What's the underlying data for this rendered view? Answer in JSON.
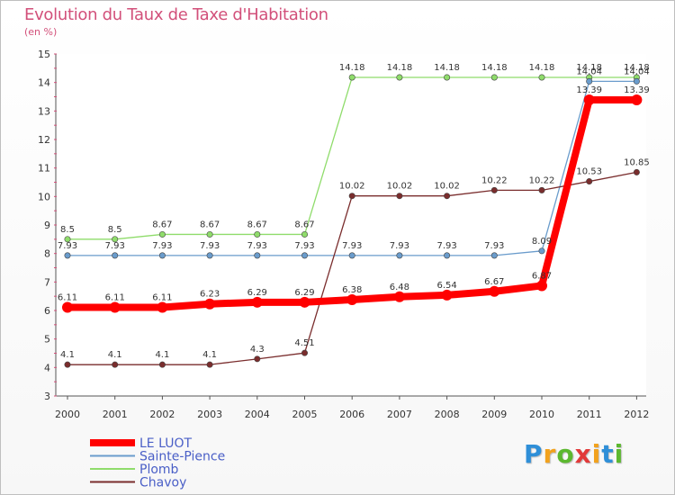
{
  "chart_data": {
    "type": "line",
    "title": "Evolution du Taux de Taxe d'Habitation",
    "ylabel": "(en %)",
    "xlabel": "",
    "ylim": [
      3,
      15
    ],
    "yticks": [
      "3",
      "4",
      "5",
      "6",
      "7",
      "8",
      "9",
      "10",
      "11",
      "12",
      "13",
      "14",
      "15"
    ],
    "categories": [
      "2000",
      "2001",
      "2002",
      "2003",
      "2004",
      "2005",
      "2006",
      "2007",
      "2008",
      "2009",
      "2010",
      "2011",
      "2012"
    ],
    "grid": false,
    "legend": "bottom-left",
    "series": [
      {
        "name": "LE LUOT",
        "color": "#ff0000",
        "values": [
          6.11,
          6.11,
          6.11,
          6.23,
          6.29,
          6.29,
          6.38,
          6.48,
          6.54,
          6.67,
          6.87,
          13.39,
          13.39
        ],
        "labels": [
          "6.11",
          "6.11",
          "6.11",
          "6.23",
          "6.29",
          "6.29",
          "6.38",
          "6.48",
          "6.54",
          "6.67",
          "6.87",
          "13.39",
          "13.39"
        ]
      },
      {
        "name": "Sainte-Pience",
        "color": "#6a9ccc",
        "values": [
          7.93,
          7.93,
          7.93,
          7.93,
          7.93,
          7.93,
          7.93,
          7.93,
          7.93,
          7.93,
          8.09,
          14.04,
          14.04
        ],
        "labels": [
          "7.93",
          "7.93",
          "7.93",
          "7.93",
          "7.93",
          "7.93",
          "7.93",
          "7.93",
          "7.93",
          "7.93",
          "8.09",
          "14.04",
          "14.04"
        ]
      },
      {
        "name": "Plomb",
        "color": "#8fdc6b",
        "values": [
          8.5,
          8.5,
          8.67,
          8.67,
          8.67,
          8.67,
          14.18,
          14.18,
          14.18,
          14.18,
          14.18,
          14.18,
          14.18
        ],
        "labels": [
          "8.5",
          "8.5",
          "8.67",
          "8.67",
          "8.67",
          "8.67",
          "14.18",
          "14.18",
          "14.18",
          "14.18",
          "14.18",
          "14.18",
          "14.18"
        ]
      },
      {
        "name": "Chavoy",
        "color": "#7a2d2d",
        "values": [
          4.1,
          4.1,
          4.1,
          4.1,
          4.3,
          4.51,
          10.02,
          10.02,
          10.02,
          10.22,
          10.22,
          10.53,
          10.85
        ],
        "labels": [
          "4.1",
          "4.1",
          "4.1",
          "4.1",
          "4.3",
          "4.51",
          "10.02",
          "10.02",
          "10.02",
          "10.22",
          "10.22",
          "10.53",
          "10.85"
        ]
      }
    ]
  },
  "brand": {
    "letters": [
      "P",
      "r",
      "o",
      "x",
      "i",
      "t",
      "i"
    ],
    "colors": [
      "#2f8fd8",
      "#f2a21d",
      "#5cb82f",
      "#e23a3a",
      "#f2a21d",
      "#2f8fd8",
      "#5cb82f"
    ]
  }
}
